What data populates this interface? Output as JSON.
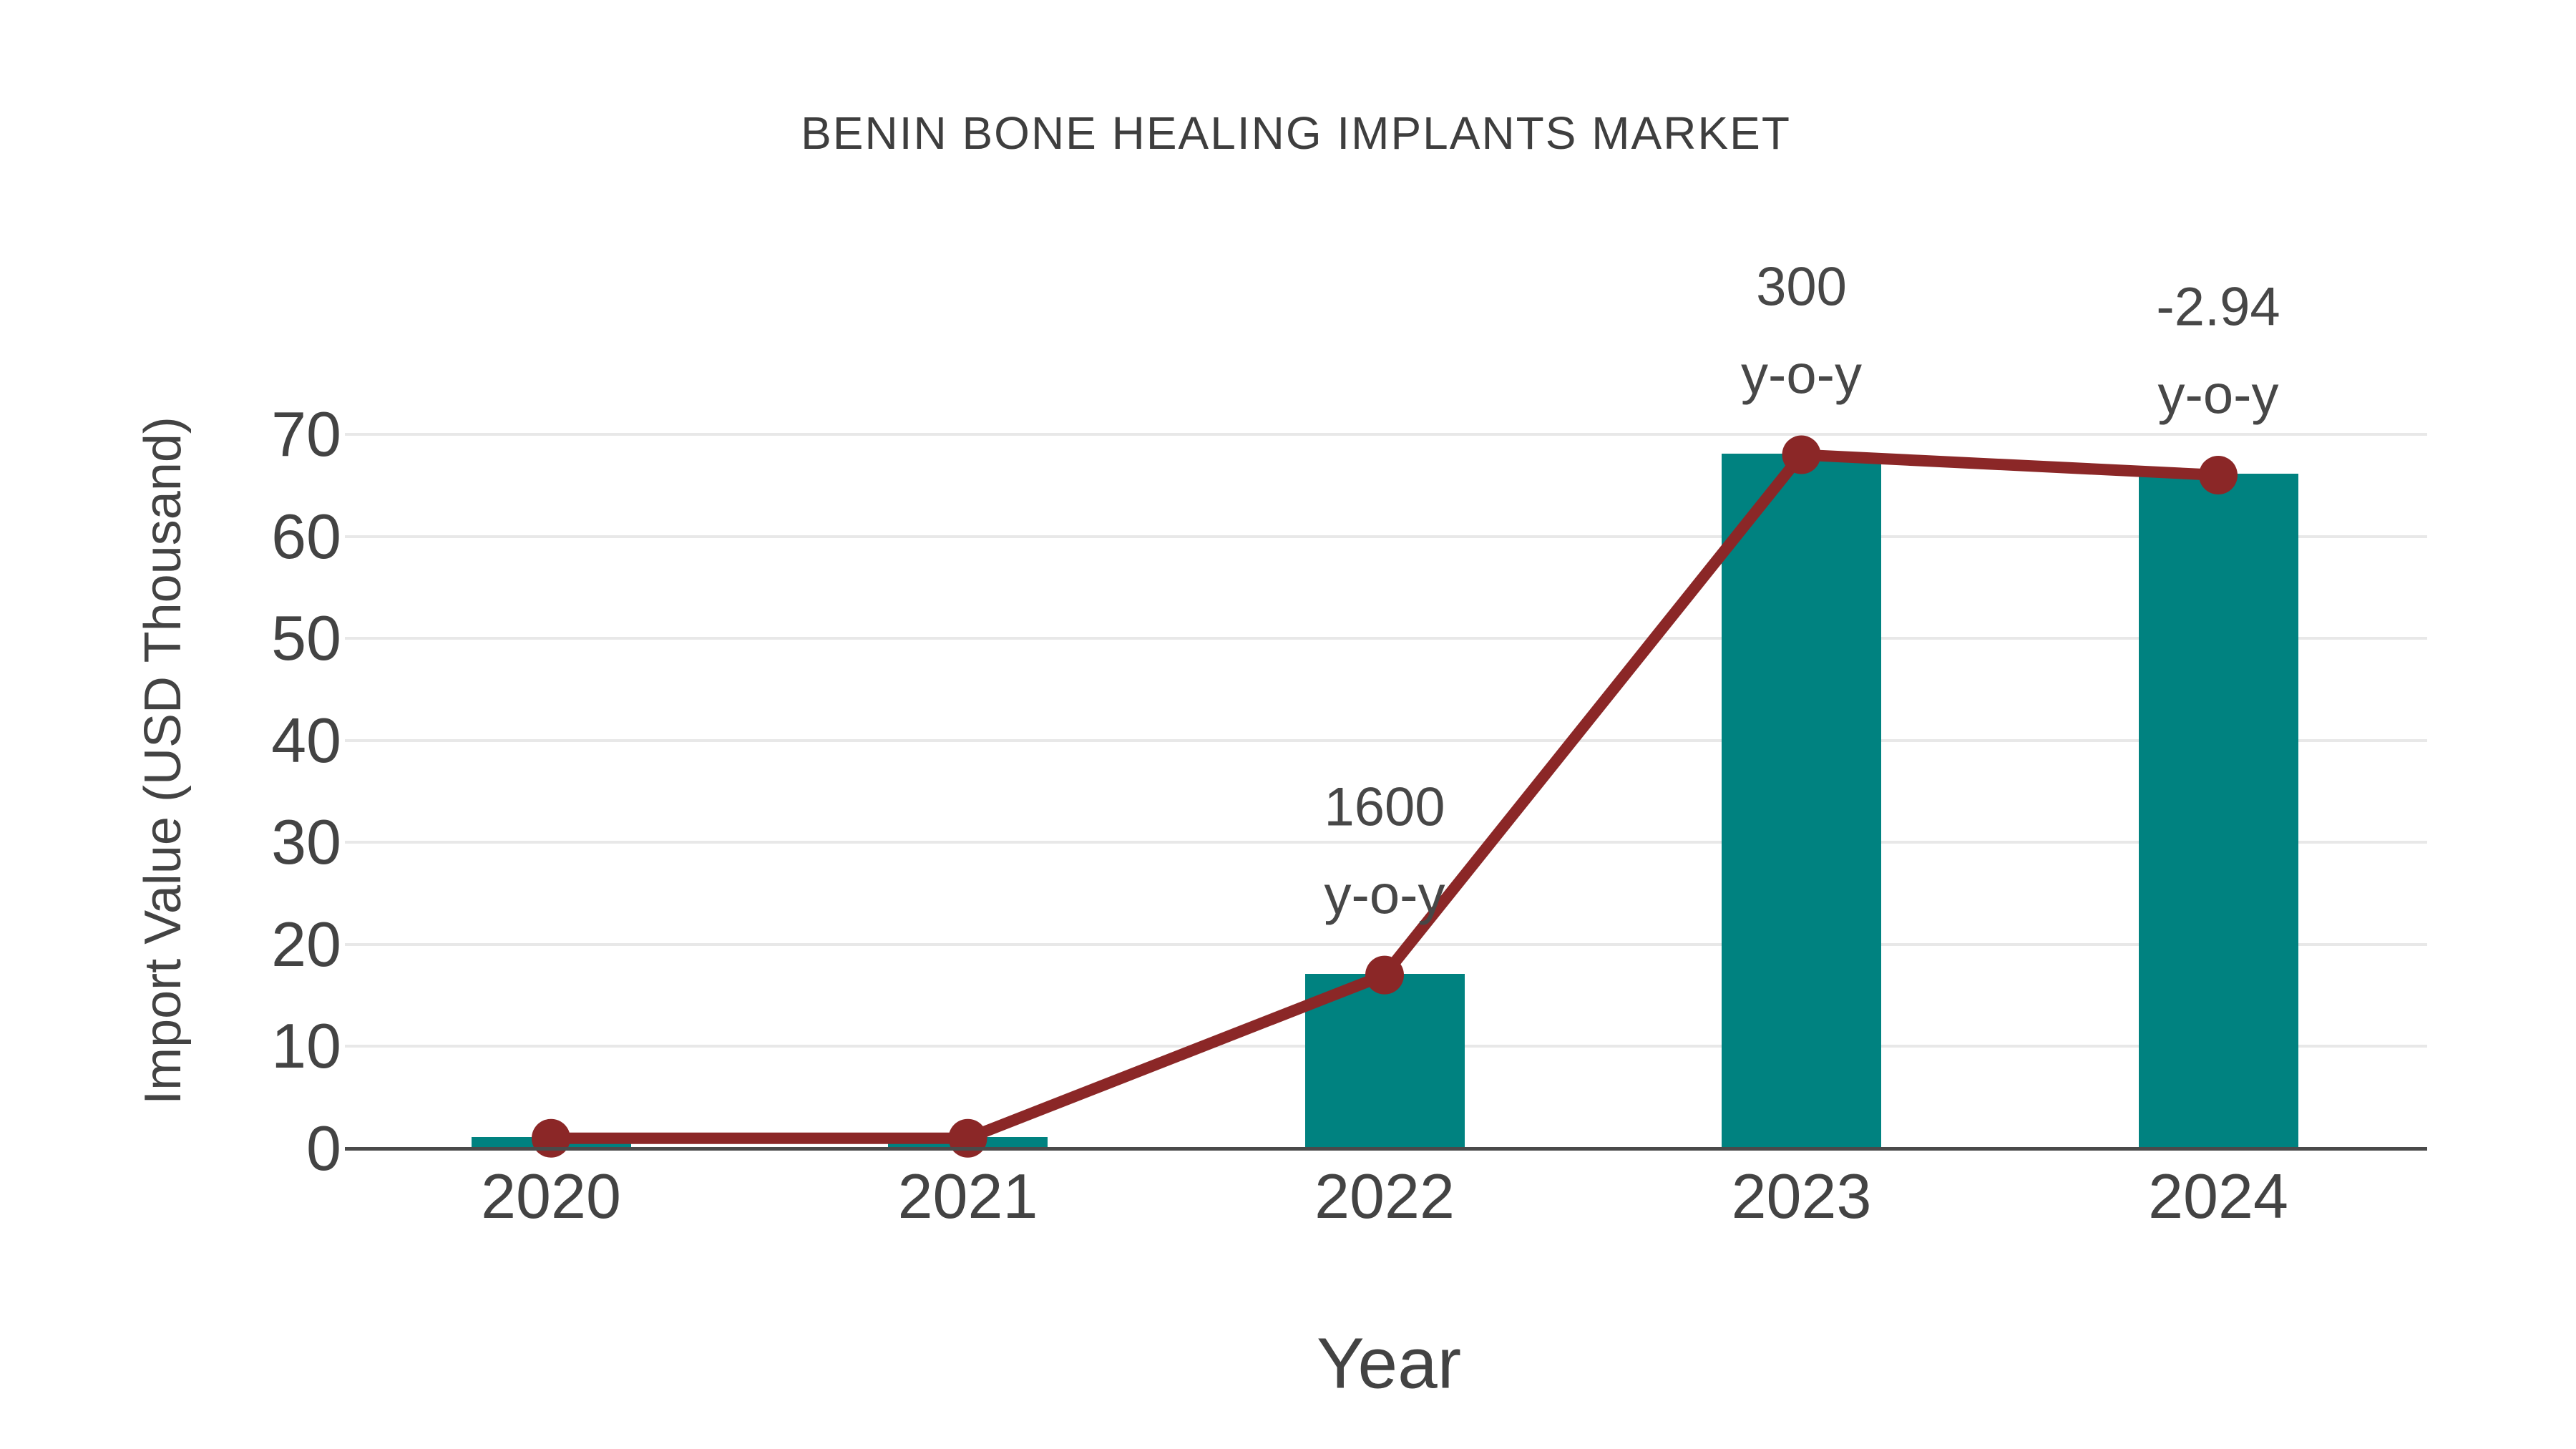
{
  "chart_data": {
    "type": "bar",
    "overlay_type": "line",
    "title": "BENIN BONE HEALING IMPLANTS MARKET",
    "xlabel": "Year",
    "ylabel": "Import Value (USD Thousand)",
    "categories": [
      "2020",
      "2021",
      "2022",
      "2023",
      "2024"
    ],
    "series": [
      {
        "name": "import-value-bars",
        "type": "bar",
        "values": [
          1,
          1,
          17,
          68,
          66
        ]
      },
      {
        "name": "import-value-trend",
        "type": "line",
        "values": [
          1,
          1,
          17,
          68,
          66
        ]
      }
    ],
    "annotations": [
      {
        "category": "2022",
        "value_text": "1600",
        "suffix_text": "y-o-y"
      },
      {
        "category": "2023",
        "value_text": "300",
        "suffix_text": "y-o-y"
      },
      {
        "category": "2024",
        "value_text": "-2.94",
        "suffix_text": "y-o-y"
      }
    ],
    "yticks": [
      0,
      10,
      20,
      30,
      40,
      50,
      60,
      70
    ],
    "ylim": [
      0,
      70
    ],
    "grid": "horizontal-only",
    "legend_position": "none",
    "colors": {
      "bar": "#008280",
      "line": "#8b2727",
      "marker": "#8b2727",
      "gridline": "#e8e8e8",
      "axis_line": "#4a4a4a",
      "text": "#434343",
      "background": "#ffffff"
    }
  }
}
